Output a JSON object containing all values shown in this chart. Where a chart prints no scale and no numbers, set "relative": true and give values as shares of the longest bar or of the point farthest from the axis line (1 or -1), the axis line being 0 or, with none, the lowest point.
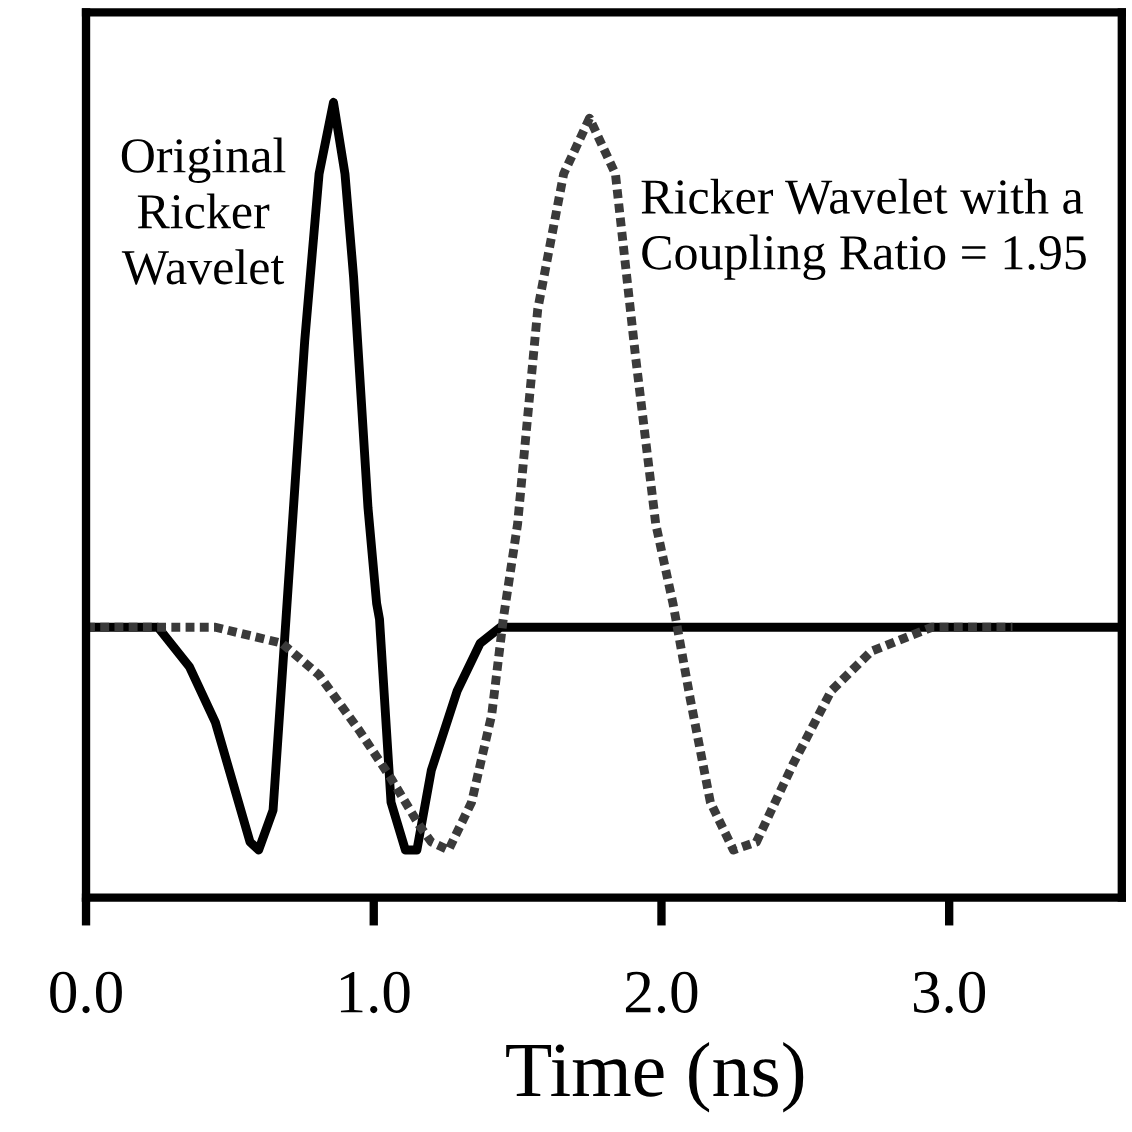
{
  "chart_data": {
    "type": "line",
    "xlabel": "Time (ns)",
    "relative": true,
    "xlim": [
      0,
      3.6
    ],
    "xticks": [
      {
        "value": 0,
        "label": "0.0"
      },
      {
        "value": 1,
        "label": "1.0"
      },
      {
        "value": 2,
        "label": "2.0"
      },
      {
        "value": 3,
        "label": "3.0"
      }
    ],
    "tick_labels": "x",
    "grid": false,
    "legend": false,
    "marker": "none",
    "series": [
      {
        "name": "Original\nRicker\nWavelet",
        "color": "#000000",
        "line_style": "solid",
        "x": [
          0,
          0.2,
          0.25,
          0.36,
          0.45,
          0.53,
          0.57,
          0.6,
          0.65,
          0.68,
          0.76,
          0.81,
          0.86,
          0.9,
          0.93,
          0.98,
          1.01,
          1.02,
          1.06,
          1.11,
          1.15,
          1.2,
          1.29,
          1.37,
          1.44,
          1.58,
          3.6
        ],
        "values": [
          0.34,
          0.34,
          0.34,
          0.29,
          0.22,
          0.12,
          0.07,
          0.06,
          0.11,
          0.27,
          0.7,
          0.91,
          1.0,
          0.91,
          0.78,
          0.49,
          0.37,
          0.35,
          0.12,
          0.06,
          0.06,
          0.16,
          0.26,
          0.32,
          0.34,
          0.34,
          0.34
        ]
      },
      {
        "name": "Ricker Wavelet with a\nCoupling Ratio = 1.95",
        "color": "#3a3a3a",
        "line_style": "dotted",
        "x": [
          0,
          0.45,
          0.68,
          0.81,
          0.95,
          1.06,
          1.16,
          1.2,
          1.26,
          1.34,
          1.41,
          1.45,
          1.5,
          1.57,
          1.66,
          1.75,
          1.84,
          1.91,
          1.98,
          2.04,
          2.05,
          2.1,
          2.17,
          2.25,
          2.33,
          2.46,
          2.59,
          2.73,
          2.94,
          3.22
        ],
        "values": [
          0.34,
          0.34,
          0.32,
          0.28,
          0.21,
          0.15,
          0.09,
          0.07,
          0.06,
          0.12,
          0.23,
          0.35,
          0.47,
          0.74,
          0.91,
          0.98,
          0.91,
          0.68,
          0.47,
          0.37,
          0.35,
          0.25,
          0.12,
          0.06,
          0.07,
          0.17,
          0.26,
          0.31,
          0.34,
          0.34
        ]
      }
    ]
  }
}
